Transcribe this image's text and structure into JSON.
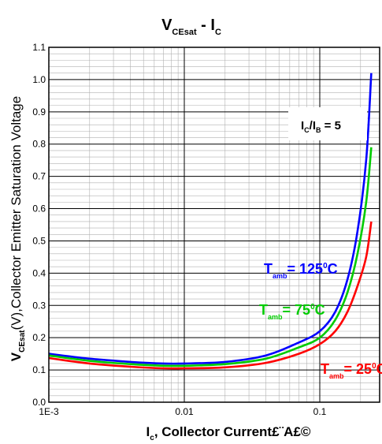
{
  "chart_data": {
    "type": "line",
    "title": {
      "main": "V",
      "main_sub": "CEsat",
      "sep": " - ",
      "tail": "I",
      "tail_sub": "C"
    },
    "xlabel": {
      "main": "I",
      "sub": "c",
      "rest": ", Collector Current£¨A£©"
    },
    "ylabel": {
      "main": "V",
      "sub": "CEsat",
      "rest": "(V),Collector Emitter Saturation Voltage"
    },
    "x_scale": "log",
    "xlim": [
      0.001,
      0.25
    ],
    "ylim": [
      0.0,
      1.1
    ],
    "x_ticks": [
      {
        "value": 0.001,
        "label": "1E-3"
      },
      {
        "value": 0.01,
        "label": "0.01"
      },
      {
        "value": 0.1,
        "label": "0.1"
      }
    ],
    "y_ticks": [
      {
        "value": 0.0,
        "label": "0.0"
      },
      {
        "value": 0.1,
        "label": "0.1"
      },
      {
        "value": 0.2,
        "label": "0.2"
      },
      {
        "value": 0.3,
        "label": "0.3"
      },
      {
        "value": 0.4,
        "label": "0.4"
      },
      {
        "value": 0.5,
        "label": "0.5"
      },
      {
        "value": 0.6,
        "label": "0.6"
      },
      {
        "value": 0.7,
        "label": "0.7"
      },
      {
        "value": 0.8,
        "label": "0.8"
      },
      {
        "value": 0.9,
        "label": "0.9"
      },
      {
        "value": 1.0,
        "label": "1.0"
      },
      {
        "value": 1.1,
        "label": "1.1"
      }
    ],
    "grid": true,
    "annotation": {
      "a": "I",
      "a_sub": "C",
      "slash": "/I",
      "b_sub": "B",
      "rest": " = 5"
    },
    "series": [
      {
        "name": {
          "main": "T",
          "sub": "amb",
          "rest": "= 125",
          "deg": "0",
          "unit": "C"
        },
        "color": "#0000ff",
        "points": [
          [
            0.001,
            0.15
          ],
          [
            0.002,
            0.135
          ],
          [
            0.004,
            0.125
          ],
          [
            0.007,
            0.12
          ],
          [
            0.01,
            0.12
          ],
          [
            0.02,
            0.125
          ],
          [
            0.04,
            0.145
          ],
          [
            0.07,
            0.185
          ],
          [
            0.1,
            0.22
          ],
          [
            0.13,
            0.28
          ],
          [
            0.16,
            0.38
          ],
          [
            0.19,
            0.53
          ],
          [
            0.22,
            0.75
          ],
          [
            0.24,
            1.02
          ]
        ]
      },
      {
        "name": {
          "main": "T",
          "sub": "amb",
          "rest": "= 75",
          "deg": "0",
          "unit": "C"
        },
        "color": "#00cc00",
        "points": [
          [
            0.001,
            0.145
          ],
          [
            0.002,
            0.128
          ],
          [
            0.004,
            0.118
          ],
          [
            0.007,
            0.113
          ],
          [
            0.01,
            0.113
          ],
          [
            0.02,
            0.118
          ],
          [
            0.04,
            0.135
          ],
          [
            0.07,
            0.17
          ],
          [
            0.1,
            0.2
          ],
          [
            0.13,
            0.255
          ],
          [
            0.16,
            0.34
          ],
          [
            0.19,
            0.46
          ],
          [
            0.22,
            0.62
          ],
          [
            0.24,
            0.79
          ]
        ]
      },
      {
        "name": {
          "main": "T",
          "sub": "amb",
          "rest": "= 25",
          "deg": "0",
          "unit": "C"
        },
        "color": "#ff0000",
        "points": [
          [
            0.001,
            0.137
          ],
          [
            0.002,
            0.12
          ],
          [
            0.004,
            0.11
          ],
          [
            0.007,
            0.105
          ],
          [
            0.01,
            0.105
          ],
          [
            0.02,
            0.108
          ],
          [
            0.04,
            0.122
          ],
          [
            0.07,
            0.15
          ],
          [
            0.1,
            0.18
          ],
          [
            0.13,
            0.22
          ],
          [
            0.16,
            0.28
          ],
          [
            0.19,
            0.36
          ],
          [
            0.22,
            0.45
          ],
          [
            0.24,
            0.56
          ]
        ]
      }
    ]
  }
}
